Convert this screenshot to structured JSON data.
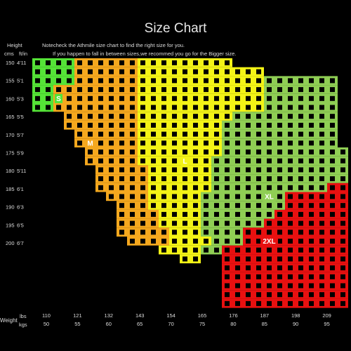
{
  "chart_data": {
    "type": "heatmap",
    "title": "Size Chart",
    "notes": [
      "Notecheck the Athmile size chart to find the right size for you.",
      "If you happen to fall in between sizes,we recommed you go for the Bigger size."
    ],
    "y_axis": {
      "title": "Height",
      "unit_labels": [
        "cms",
        "ft/in"
      ],
      "rows": [
        {
          "cm": "150",
          "ftin": "4'11"
        },
        {
          "cm": "155",
          "ftin": "5'1"
        },
        {
          "cm": "160",
          "ftin": "5'3"
        },
        {
          "cm": "165",
          "ftin": "5'5"
        },
        {
          "cm": "170",
          "ftin": "5'7"
        },
        {
          "cm": "175",
          "ftin": "5'9"
        },
        {
          "cm": "180",
          "ftin": "5'11"
        },
        {
          "cm": "185",
          "ftin": "6'1"
        },
        {
          "cm": "190",
          "ftin": "6'3"
        },
        {
          "cm": "195",
          "ftin": "6'5"
        },
        {
          "cm": "200",
          "ftin": "6'7"
        }
      ]
    },
    "x_axis": {
      "title": "Weight",
      "unit_labels": [
        "lbs",
        "kgs"
      ],
      "cols": [
        {
          "lbs": "110",
          "kgs": "50"
        },
        {
          "lbs": "121",
          "kgs": "55"
        },
        {
          "lbs": "132",
          "kgs": "60"
        },
        {
          "lbs": "143",
          "kgs": "65"
        },
        {
          "lbs": "154",
          "kgs": "70"
        },
        {
          "lbs": "165",
          "kgs": "75"
        },
        {
          "lbs": "176",
          "kgs": "80"
        },
        {
          "lbs": "187",
          "kgs": "85"
        },
        {
          "lbs": "198",
          "kgs": "90"
        },
        {
          "lbs": "209",
          "kgs": "95"
        }
      ]
    },
    "sizes": [
      {
        "name": "S",
        "color": "#55e337"
      },
      {
        "name": "M",
        "color": "#f5a81e"
      },
      {
        "name": "L",
        "color": "#f3f316"
      },
      {
        "name": "XL",
        "color": "#8fce54"
      },
      {
        "name": "2XL",
        "color": "#e81010"
      }
    ],
    "grid": [
      "SSSSMMMMMMLLLLLLLLL...........",
      "SSSSMMMMMMLLLLLLLLLLLL........",
      "SSSSMMMMMMLLLLLLLLLLLLXXXXXXX.",
      "SSMMMMMMMMLLLLLLLLLLLLXXXXXXX.",
      "SSMMMMMMMMLLLLLLLLLLLLXXXXXXX.",
      "SSMMMMMMMMLLLLLLLLLLLLXXXXXXX.",
      "...MMMMMMMLLLLLLLLLXXXXXXXXXX.",
      "...MMMMMMMLLLLLLLLXXXXXXXXXXX.",
      "....MMMMMMLLLLLLLLXXXXXXXXXXX.",
      "....MMMMMMLLLLLLLLXXXXXXXXXXX.",
      ".....MMMMMLLLLLLLLXXXXXXXXXXXX",
      ".....MMMMMLLLLLLLXXXXXXXXXXXXX",
      "......MMMMMLLLLLLXXXXXXXXXXXXX",
      "......MMMMMLLLLLLXXXXXXXXXXXXX",
      "......MMMMMLLLLLLXXXXXXXXXXX22",
      ".......MMMMLLLLLXXXXXXXX222222",
      "........MMMLLLLLXXXXXXXX222222",
      "........MMMMLLLLXXXXXXX2222222",
      "........MMMMLLLLXXXXXX22222222",
      "........MMMMMLLLXXXX2222222222",
      ".........MMMMLLLLXXX2222222222",
      "............LLLLXX222222222222",
      "..............LL..222222222222",
      "..................222222222222",
      "..................222222222222",
      "..................222222222222",
      "..................222222222222",
      "..................222222222222"
    ],
    "size_label_cells": [
      {
        "name": "S",
        "row": 4,
        "col": 2
      },
      {
        "name": "M",
        "row": 9,
        "col": 5
      },
      {
        "name": "L",
        "row": 11,
        "col": 14
      },
      {
        "name": "XL",
        "row": 15,
        "col": 22
      },
      {
        "name": "2XL",
        "row": 20,
        "col": 22
      }
    ]
  }
}
